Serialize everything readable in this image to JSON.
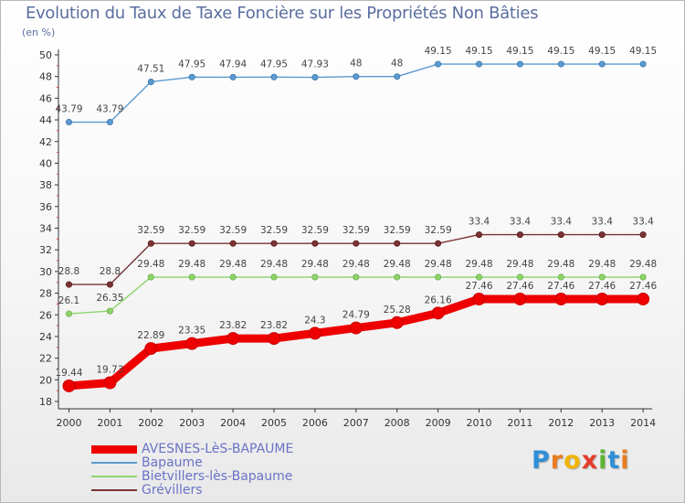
{
  "chart_data": {
    "type": "line",
    "title": "Evolution du Taux de Taxe Foncière sur les Propriétés Non Bâties",
    "ylabel": "(en %)",
    "xlabel": "",
    "categories": [
      "2000",
      "2001",
      "2002",
      "2003",
      "2004",
      "2005",
      "2006",
      "2007",
      "2008",
      "2009",
      "2010",
      "2011",
      "2012",
      "2013",
      "2014"
    ],
    "ylim": [
      18,
      50
    ],
    "yticks": [
      18,
      20,
      22,
      24,
      26,
      28,
      30,
      32,
      34,
      36,
      38,
      40,
      42,
      44,
      46,
      48,
      50
    ],
    "series": [
      {
        "name": "AVESNES-LèS-BAPAUME",
        "color": "#ee0000",
        "style": "thick",
        "values": [
          19.44,
          19.73,
          22.89,
          23.35,
          23.82,
          23.82,
          24.3,
          24.79,
          25.28,
          26.16,
          27.46,
          27.46,
          27.46,
          27.46,
          27.46
        ],
        "labels": [
          "19.44",
          "19.73",
          "22.89",
          "23.35",
          "23.82",
          "23.82",
          "24.3",
          "24.79",
          "25.28",
          "26.16",
          "27.46",
          "27.46",
          "27.46",
          "27.46",
          "27.46"
        ]
      },
      {
        "name": "Bapaume",
        "color": "#5b9ad0",
        "style": "thin",
        "values": [
          43.79,
          43.79,
          47.51,
          47.95,
          47.94,
          47.95,
          47.93,
          48,
          48,
          49.15,
          49.15,
          49.15,
          49.15,
          49.15,
          49.15
        ],
        "labels": [
          "43.79",
          "43.79",
          "47.51",
          "47.95",
          "47.94",
          "47.95",
          "47.93",
          "48",
          "48",
          "49.15",
          "49.15",
          "49.15",
          "49.15",
          "49.15",
          "49.15"
        ]
      },
      {
        "name": "Bietvillers-lès-Bapaume",
        "color": "#8ed46a",
        "style": "thin",
        "values": [
          26.1,
          26.35,
          29.48,
          29.48,
          29.48,
          29.48,
          29.48,
          29.48,
          29.48,
          29.48,
          29.48,
          29.48,
          29.48,
          29.48,
          29.48
        ],
        "labels": [
          "26.1",
          "26.35",
          "29.48",
          "29.48",
          "29.48",
          "29.48",
          "29.48",
          "29.48",
          "29.48",
          "29.48",
          "29.48",
          "29.48",
          "29.48",
          "29.48",
          "29.48"
        ]
      },
      {
        "name": "Grévillers",
        "color": "#7a3434",
        "style": "thin",
        "values": [
          28.8,
          28.8,
          32.59,
          32.59,
          32.59,
          32.59,
          32.59,
          32.59,
          32.59,
          32.59,
          33.4,
          33.4,
          33.4,
          33.4,
          33.4
        ],
        "labels": [
          "28.8",
          "28.8",
          "32.59",
          "32.59",
          "32.59",
          "32.59",
          "32.59",
          "32.59",
          "32.59",
          "32.59",
          "33.4",
          "33.4",
          "33.4",
          "33.4",
          "33.4"
        ]
      }
    ],
    "legend": "bottom-left",
    "grid": false
  },
  "logo": {
    "letters": [
      "P",
      "r",
      "o",
      "x",
      "i",
      "t",
      "i"
    ],
    "colors": [
      "#2f8fd6",
      "#e87c1e",
      "#f0b400",
      "#e43c2c",
      "#5bb531",
      "#2f8fd6",
      "#e87c1e"
    ]
  }
}
